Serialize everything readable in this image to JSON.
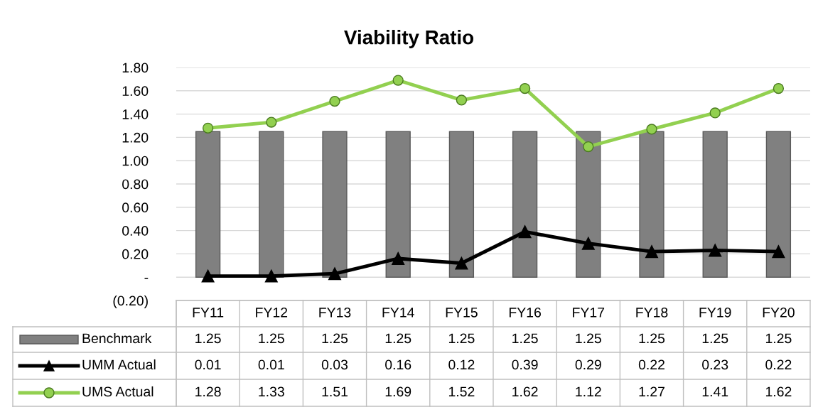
{
  "chart_data": {
    "type": "bar",
    "title": "Viability Ratio",
    "categories": [
      "FY11",
      "FY12",
      "FY13",
      "FY14",
      "FY15",
      "FY16",
      "FY17",
      "FY18",
      "FY19",
      "FY20"
    ],
    "series": [
      {
        "name": "Benchmark",
        "color": "#808080",
        "values": [
          1.25,
          1.25,
          1.25,
          1.25,
          1.25,
          1.25,
          1.25,
          1.25,
          1.25,
          1.25
        ]
      },
      {
        "name": "UMM Actual",
        "type": "line",
        "color": "#000000",
        "marker": "triangle",
        "values": [
          0.01,
          0.01,
          0.03,
          0.16,
          0.12,
          0.39,
          0.29,
          0.22,
          0.23,
          0.22
        ]
      },
      {
        "name": "UMS Actual",
        "type": "line",
        "color": "#92d050",
        "marker": "circle",
        "values": [
          1.28,
          1.33,
          1.51,
          1.69,
          1.52,
          1.62,
          1.12,
          1.27,
          1.41,
          1.62
        ]
      }
    ],
    "ylim": [
      -0.2,
      1.8
    ],
    "yticks": [
      {
        "value": -0.2,
        "label": "(0.20)"
      },
      {
        "value": 0,
        "label": "-"
      },
      {
        "value": 0.2,
        "label": "0.20"
      },
      {
        "value": 0.4,
        "label": "0.40"
      },
      {
        "value": 0.6,
        "label": "0.60"
      },
      {
        "value": 0.8,
        "label": "0.80"
      },
      {
        "value": 1.0,
        "label": "1.00"
      },
      {
        "value": 1.2,
        "label": "1.20"
      },
      {
        "value": 1.4,
        "label": "1.40"
      },
      {
        "value": 1.6,
        "label": "1.60"
      },
      {
        "value": 1.8,
        "label": "1.80"
      }
    ],
    "grid": "y",
    "legend": "bottom",
    "data_labels": true
  }
}
